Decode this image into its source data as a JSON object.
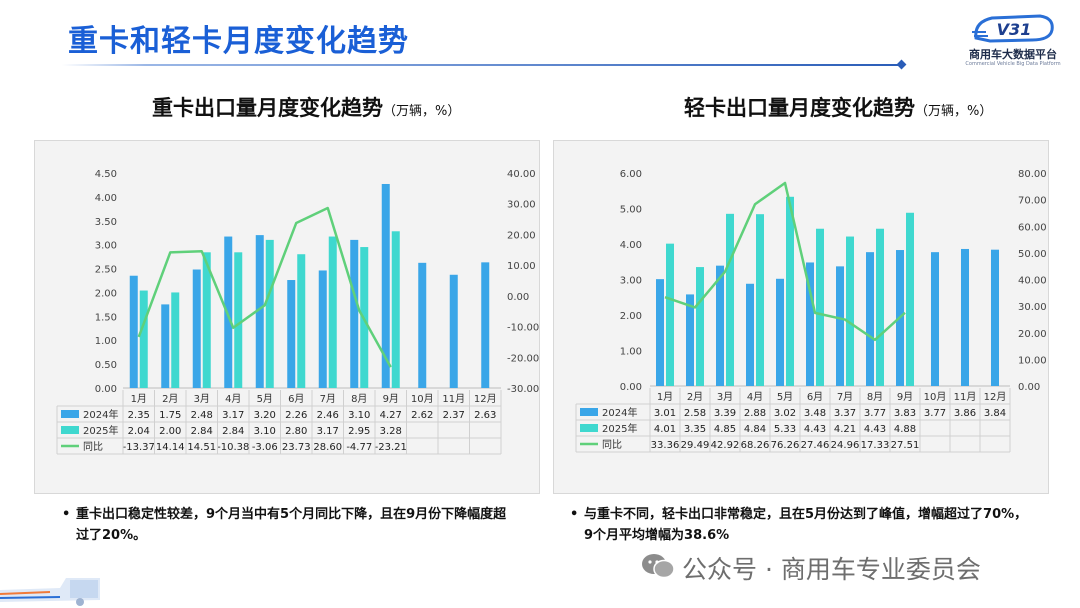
{
  "page": {
    "title": "重卡和轻卡月度变化趋势",
    "logo": {
      "name_cn": "商用车大数据平台",
      "name_en": "Commercial Vehicle Big Data Platform",
      "mark": "V31"
    },
    "watermark": "公众号 · 商用车专业委员会"
  },
  "colors": {
    "bar2024": "#3aa6e8",
    "bar2025": "#3fd8cf",
    "line": "#5fd07a",
    "title": "#1a5fd6"
  },
  "chart_data": [
    {
      "id": "heavy",
      "type": "bar+line",
      "title": "重卡出口量月度变化趋势",
      "unit": "（万辆，%）",
      "categories": [
        "1月",
        "2月",
        "3月",
        "4月",
        "5月",
        "6月",
        "7月",
        "8月",
        "9月",
        "10月",
        "11月",
        "12月"
      ],
      "series": [
        {
          "name": "2024年",
          "values": [
            2.35,
            1.75,
            2.48,
            3.17,
            3.2,
            2.26,
            2.46,
            3.1,
            4.27,
            2.62,
            2.37,
            2.63
          ]
        },
        {
          "name": "2025年",
          "values": [
            2.04,
            2.0,
            2.84,
            2.84,
            3.1,
            2.8,
            3.17,
            2.95,
            3.28,
            null,
            null,
            null
          ]
        },
        {
          "name": "同比",
          "axis": "right",
          "values": [
            -13.37,
            14.14,
            14.51,
            -10.38,
            -3.06,
            23.73,
            28.6,
            -4.77,
            -23.21,
            null,
            null,
            null
          ]
        }
      ],
      "y_left": {
        "min": 0,
        "max": 4.5,
        "step": 0.5,
        "decimals": 2
      },
      "y_right": {
        "min": -30,
        "max": 40,
        "step": 10,
        "decimals": 2
      },
      "note": "重卡出口稳定性较差，9个月当中有5个月同比下降，且在9月份下降幅度超过了20%。"
    },
    {
      "id": "light",
      "type": "bar+line",
      "title": "轻卡出口量月度变化趋势",
      "unit": "（万辆，%）",
      "categories": [
        "1月",
        "2月",
        "3月",
        "4月",
        "5月",
        "6月",
        "7月",
        "8月",
        "9月",
        "10月",
        "11月",
        "12月"
      ],
      "series": [
        {
          "name": "2024年",
          "values": [
            3.01,
            2.58,
            3.39,
            2.88,
            3.02,
            3.48,
            3.37,
            3.77,
            3.83,
            3.77,
            3.86,
            3.84
          ]
        },
        {
          "name": "2025年",
          "values": [
            4.01,
            3.35,
            4.85,
            4.84,
            5.33,
            4.43,
            4.21,
            4.43,
            4.88,
            null,
            null,
            null
          ]
        },
        {
          "name": "同比",
          "axis": "right",
          "values": [
            33.36,
            29.49,
            42.92,
            68.26,
            76.26,
            27.46,
            24.96,
            17.33,
            27.51,
            null,
            null,
            null
          ]
        }
      ],
      "y_left": {
        "min": 0,
        "max": 6,
        "step": 1,
        "decimals": 2
      },
      "y_right": {
        "min": 0,
        "max": 80,
        "step": 10,
        "decimals": 2
      },
      "note": "与重卡不同，轻卡出口非常稳定，且在5月份达到了峰值，增幅超过了70%，9个月平均增幅为38.6%"
    }
  ]
}
